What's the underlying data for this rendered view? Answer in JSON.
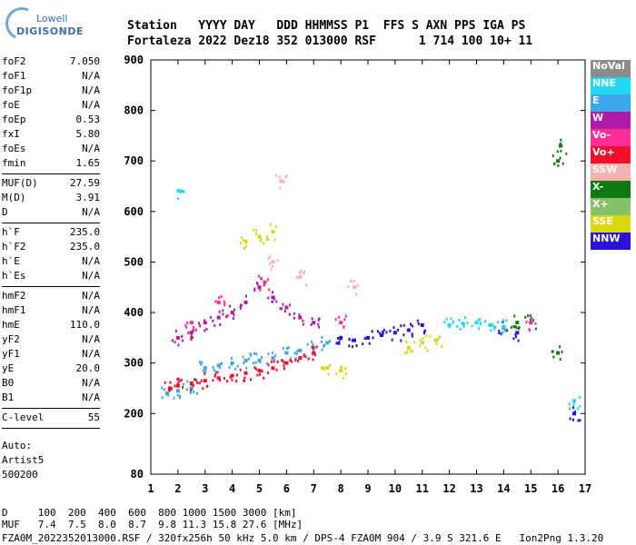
{
  "logo": {
    "line1": "Lowell",
    "line2": "DIGISONDE"
  },
  "header": {
    "line1": "Station   YYYY DAY   DDD HHMMSS P1  FFS S AXN PPS IGA PS",
    "line2": "Fortaleza 2022 Dez18 352 013000 RSF      1 714 100 10+ 11"
  },
  "params": {
    "group1": [
      {
        "name": "foF2",
        "value": "7.050"
      },
      {
        "name": "foF1",
        "value": "N/A"
      },
      {
        "name": "foF1p",
        "value": "N/A"
      },
      {
        "name": "foE",
        "value": "N/A"
      },
      {
        "name": "foEp",
        "value": "0.53"
      },
      {
        "name": "fxI",
        "value": "5.80"
      },
      {
        "name": "foEs",
        "value": "N/A"
      },
      {
        "name": "fmin",
        "value": "1.65"
      }
    ],
    "group2": [
      {
        "name": "MUF(D)",
        "value": "27.59"
      },
      {
        "name": "M(D)",
        "value": "3.91"
      },
      {
        "name": "D",
        "value": "N/A"
      }
    ],
    "group3": [
      {
        "name": "h`F",
        "value": "235.0"
      },
      {
        "name": "h`F2",
        "value": "235.0"
      },
      {
        "name": "h`E",
        "value": "N/A"
      },
      {
        "name": "h`Es",
        "value": "N/A"
      }
    ],
    "group4": [
      {
        "name": "hmF2",
        "value": "N/A"
      },
      {
        "name": "hmF1",
        "value": "N/A"
      },
      {
        "name": "hmE",
        "value": "110.0"
      },
      {
        "name": "yF2",
        "value": "N/A"
      },
      {
        "name": "yF1",
        "value": "N/A"
      },
      {
        "name": "yE",
        "value": "20.0"
      },
      {
        "name": "B0",
        "value": "N/A"
      },
      {
        "name": "B1",
        "value": "N/A"
      }
    ],
    "group5": [
      {
        "name": "C-level",
        "value": "55"
      }
    ]
  },
  "auto": {
    "line1": "Auto:",
    "line2": "Artist5",
    "line3": "500200"
  },
  "legend": [
    {
      "label": "NoVal",
      "color": "#8c8c8c"
    },
    {
      "label": "NNE",
      "color": "#22d8f0"
    },
    {
      "label": "E",
      "color": "#3da5ea"
    },
    {
      "label": "W",
      "color": "#b01aa8"
    },
    {
      "label": "Vo-",
      "color": "#ff2d9a"
    },
    {
      "label": "Vo+",
      "color": "#f0102e"
    },
    {
      "label": "SSW",
      "color": "#f7b1b1"
    },
    {
      "label": "X-",
      "color": "#0f7a12"
    },
    {
      "label": "X+",
      "color": "#86c06a"
    },
    {
      "label": "SSE",
      "color": "#d8d812"
    },
    {
      "label": "NNW",
      "color": "#2a12d8"
    }
  ],
  "footer": {
    "line1": "D     100  200  400  600  800 1000 1500 3000 [km]",
    "line2": "MUF   7.4  7.5  8.0  8.7  9.8 11.3 15.8 27.6 [MHz]",
    "line3": "FZA0M_2022352013000.RSF / 320fx256h 50 kHz 5.0 km / DPS-4 FZA0M 904 / 3.9 S 321.6 E   Ion2Png 1.3.20"
  },
  "chart_data": {
    "type": "scatter",
    "xlim": [
      1,
      17
    ],
    "ylim": [
      80,
      900
    ],
    "x_ticks": [
      "1",
      "2",
      "3",
      "4",
      "5",
      "6",
      "7",
      "8",
      "9",
      "10",
      "11",
      "12",
      "13",
      "14",
      "15",
      "16",
      "17"
    ],
    "y_ticks": [
      "80",
      "200",
      "300",
      "400",
      "500",
      "600",
      "700",
      "800",
      "900"
    ],
    "grid": false,
    "legend_position": "right",
    "series": [
      {
        "name": "E",
        "color": "#3da5ea",
        "points": [
          [
            1.6,
            240
          ],
          [
            2.0,
            245
          ],
          [
            2.5,
            250
          ],
          [
            3.0,
            290
          ],
          [
            3.5,
            295
          ],
          [
            4.0,
            300
          ],
          [
            4.5,
            305
          ],
          [
            5.0,
            305
          ],
          [
            5.5,
            310
          ],
          [
            6.0,
            320
          ],
          [
            6.5,
            325
          ],
          [
            7.0,
            330
          ],
          [
            7.5,
            340
          ]
        ]
      },
      {
        "name": "Vo+",
        "color": "#f0102e",
        "points": [
          [
            1.7,
            250
          ],
          [
            2.0,
            255
          ],
          [
            2.5,
            260
          ],
          [
            3.0,
            265
          ],
          [
            3.5,
            270
          ],
          [
            4.0,
            275
          ],
          [
            4.5,
            280
          ],
          [
            5.0,
            285
          ],
          [
            5.5,
            290
          ],
          [
            6.0,
            300
          ],
          [
            6.5,
            310
          ],
          [
            7.0,
            320
          ]
        ]
      },
      {
        "name": "W",
        "color": "#b01aa8",
        "points": [
          [
            2.0,
            350
          ],
          [
            2.5,
            360
          ],
          [
            3.0,
            380
          ],
          [
            3.5,
            390
          ],
          [
            4.0,
            400
          ],
          [
            4.5,
            420
          ],
          [
            5.0,
            450
          ],
          [
            5.5,
            430
          ],
          [
            6.0,
            410
          ],
          [
            6.5,
            390
          ],
          [
            7.0,
            380
          ]
        ]
      },
      {
        "name": "SSE",
        "color": "#d8d812",
        "points": [
          [
            4.5,
            540
          ],
          [
            5.0,
            550
          ],
          [
            5.5,
            560
          ],
          [
            7.5,
            290
          ],
          [
            8.0,
            285
          ],
          [
            10.5,
            330
          ],
          [
            11.0,
            340
          ],
          [
            11.5,
            345
          ]
        ]
      },
      {
        "name": "NNW",
        "color": "#2a12d8",
        "points": [
          [
            8.0,
            350
          ],
          [
            8.5,
            345
          ],
          [
            9.0,
            350
          ],
          [
            9.5,
            355
          ],
          [
            10.0,
            360
          ],
          [
            10.5,
            365
          ],
          [
            11.0,
            375
          ],
          [
            14.0,
            370
          ],
          [
            14.5,
            360
          ],
          [
            16.6,
            200
          ]
        ]
      },
      {
        "name": "NNE",
        "color": "#22d8f0",
        "points": [
          [
            12.0,
            375
          ],
          [
            12.5,
            378
          ],
          [
            13.0,
            380
          ],
          [
            13.5,
            375
          ],
          [
            14.0,
            372
          ],
          [
            16.6,
            225
          ],
          [
            2.1,
            640
          ]
        ]
      },
      {
        "name": "X-",
        "color": "#0f7a12",
        "points": [
          [
            14.5,
            380
          ],
          [
            15.0,
            380
          ],
          [
            16.0,
            700
          ],
          [
            16.1,
            730
          ],
          [
            16.0,
            320
          ]
        ]
      },
      {
        "name": "SSW",
        "color": "#f7b1b1",
        "points": [
          [
            5.8,
            660
          ],
          [
            5.5,
            500
          ],
          [
            6.5,
            470
          ],
          [
            8.5,
            450
          ]
        ]
      },
      {
        "name": "Vo-",
        "color": "#ff2d9a",
        "points": [
          [
            2.5,
            380
          ],
          [
            3.5,
            420
          ],
          [
            5.2,
            460
          ],
          [
            8.0,
            380
          ],
          [
            15.0,
            380
          ]
        ]
      }
    ]
  }
}
